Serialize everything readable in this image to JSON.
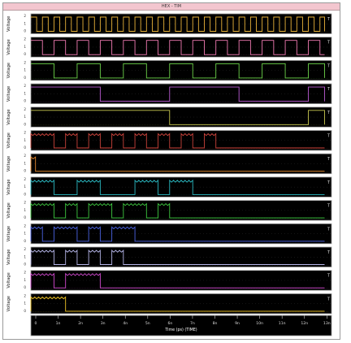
{
  "window": {
    "title": "HEX - TIM"
  },
  "chart_data": {
    "type": "line",
    "title": "HEX - TIM",
    "xlabel": "Time (ps) (TIME)",
    "ylabel": "Voltage",
    "x_ticks": [
      "0",
      "1n",
      "2n",
      "3n",
      "4n",
      "5n",
      "6n",
      "7n",
      "8n",
      "9n",
      "10n",
      "11n",
      "12n",
      "13n"
    ],
    "x_range": [
      0,
      13
    ],
    "y_range": [
      0,
      2
    ],
    "y_ticks": [
      "2",
      "1",
      "0"
    ],
    "end_marker": "T",
    "panels": [
      {
        "color": "#e8b23a",
        "kind": "square",
        "period": 0.5,
        "duty": 0.5,
        "phase": 0.0
      },
      {
        "color": "#f07ab2",
        "kind": "square",
        "period": 1.0,
        "duty": 0.5,
        "phase": 0.0
      },
      {
        "color": "#6cd24a",
        "kind": "square",
        "period": 2.0,
        "duty": 0.5,
        "phase": 0.0
      },
      {
        "color": "#b85ad0",
        "kind": "square",
        "period": 6.0,
        "duty": 0.5,
        "phase": 0.0
      },
      {
        "color": "#c8c850",
        "kind": "square",
        "period": 12.0,
        "duty": 0.5,
        "phase": 0.0
      },
      {
        "color": "#c8423a",
        "kind": "burst",
        "bursts": [
          [
            0.0,
            1.0
          ],
          [
            1.5,
            2.0
          ],
          [
            2.5,
            3.0
          ],
          [
            3.5,
            4.0
          ],
          [
            4.5,
            5.0
          ],
          [
            5.5,
            6.0
          ],
          [
            6.5,
            7.0
          ],
          [
            7.5,
            8.0
          ]
        ]
      },
      {
        "color": "#e88a30",
        "kind": "burst",
        "bursts": [
          [
            0.0,
            0.2
          ]
        ]
      },
      {
        "color": "#2ab8c0",
        "kind": "burst",
        "bursts": [
          [
            0.0,
            1.0
          ],
          [
            2.0,
            3.0
          ],
          [
            4.5,
            5.5
          ],
          [
            6.0,
            7.0
          ]
        ]
      },
      {
        "color": "#3ec840",
        "kind": "burst",
        "bursts": [
          [
            0.0,
            1.0
          ],
          [
            1.5,
            2.0
          ],
          [
            2.5,
            3.5
          ],
          [
            4.0,
            5.0
          ],
          [
            5.5,
            6.0
          ]
        ]
      },
      {
        "color": "#4a62e0",
        "kind": "burst",
        "bursts": [
          [
            0.0,
            0.5
          ],
          [
            1.0,
            2.0
          ],
          [
            2.5,
            3.0
          ],
          [
            3.5,
            4.5
          ]
        ]
      },
      {
        "color": "#b4b4e6",
        "kind": "burst",
        "bursts": [
          [
            0.0,
            1.0
          ],
          [
            1.5,
            2.0
          ],
          [
            2.5,
            3.0
          ],
          [
            3.5,
            4.0
          ]
        ]
      },
      {
        "color": "#d24ad0",
        "kind": "burst",
        "bursts": [
          [
            0.0,
            1.0
          ],
          [
            1.5,
            3.0
          ]
        ]
      },
      {
        "color": "#f2c626",
        "kind": "burst",
        "bursts": [
          [
            0.0,
            1.5
          ]
        ]
      }
    ]
  }
}
